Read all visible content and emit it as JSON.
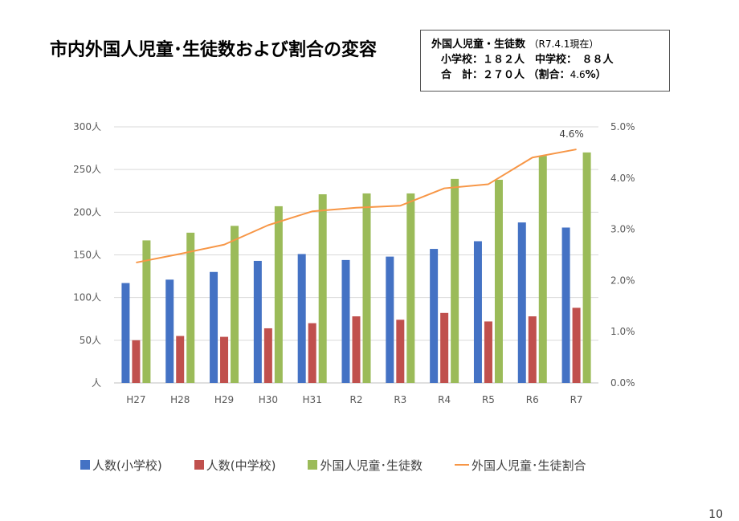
{
  "slide": {
    "title": "市内外国人児童･生徒数および割合の変容",
    "page_number": "10"
  },
  "info_box": {
    "line1_label": "外国人児童・生徒数",
    "line1_date": "（R7.4.1現在）",
    "line2": "小学校：１８２人　中学校：　８８人",
    "line3_total": "合　計：２７０人",
    "line3_ratio_open": "（割合：",
    "line3_ratio_value": "4.6",
    "line3_ratio_close": "%）"
  },
  "chart_data": {
    "type": "bar",
    "categories": [
      "H27",
      "H28",
      "H29",
      "H30",
      "H31",
      "R2",
      "R3",
      "R4",
      "R5",
      "R6",
      "R7"
    ],
    "series": [
      {
        "name": "人数(小学校)",
        "type": "bar",
        "axis": "left",
        "color": "#4472C4",
        "values": [
          117,
          121,
          130,
          143,
          151,
          144,
          148,
          157,
          166,
          188,
          182
        ]
      },
      {
        "name": "人数(中学校)",
        "type": "bar",
        "axis": "left",
        "color": "#C0504D",
        "values": [
          50,
          55,
          54,
          64,
          70,
          78,
          74,
          82,
          72,
          78,
          88
        ]
      },
      {
        "name": "外国人児童･生徒数",
        "type": "bar",
        "axis": "left",
        "color": "#9BBB59",
        "values": [
          167,
          176,
          184,
          207,
          221,
          222,
          222,
          239,
          238,
          266,
          270
        ]
      },
      {
        "name": "外国人児童･生徒割合",
        "type": "line",
        "axis": "right",
        "color": "#F79646",
        "values": [
          2.35,
          2.52,
          2.7,
          3.08,
          3.35,
          3.42,
          3.46,
          3.8,
          3.88,
          4.4,
          4.56
        ]
      }
    ],
    "y_left": {
      "range": [
        0,
        300
      ],
      "ticks": [
        0,
        50,
        100,
        150,
        200,
        250,
        300
      ],
      "tick_labels": [
        "人",
        "50人",
        "100人",
        "150人",
        "200人",
        "250人",
        "300人"
      ]
    },
    "y_right": {
      "range": [
        0,
        5
      ],
      "ticks": [
        0,
        1,
        2,
        3,
        4,
        5
      ],
      "tick_labels": [
        "0.0%",
        "1.0%",
        "2.0%",
        "3.0%",
        "4.0%",
        "5.0%"
      ]
    },
    "annotations": [
      {
        "series_index": 3,
        "point_index": 10,
        "text": "4.6%"
      }
    ],
    "grid": true,
    "legend": "bottom"
  }
}
